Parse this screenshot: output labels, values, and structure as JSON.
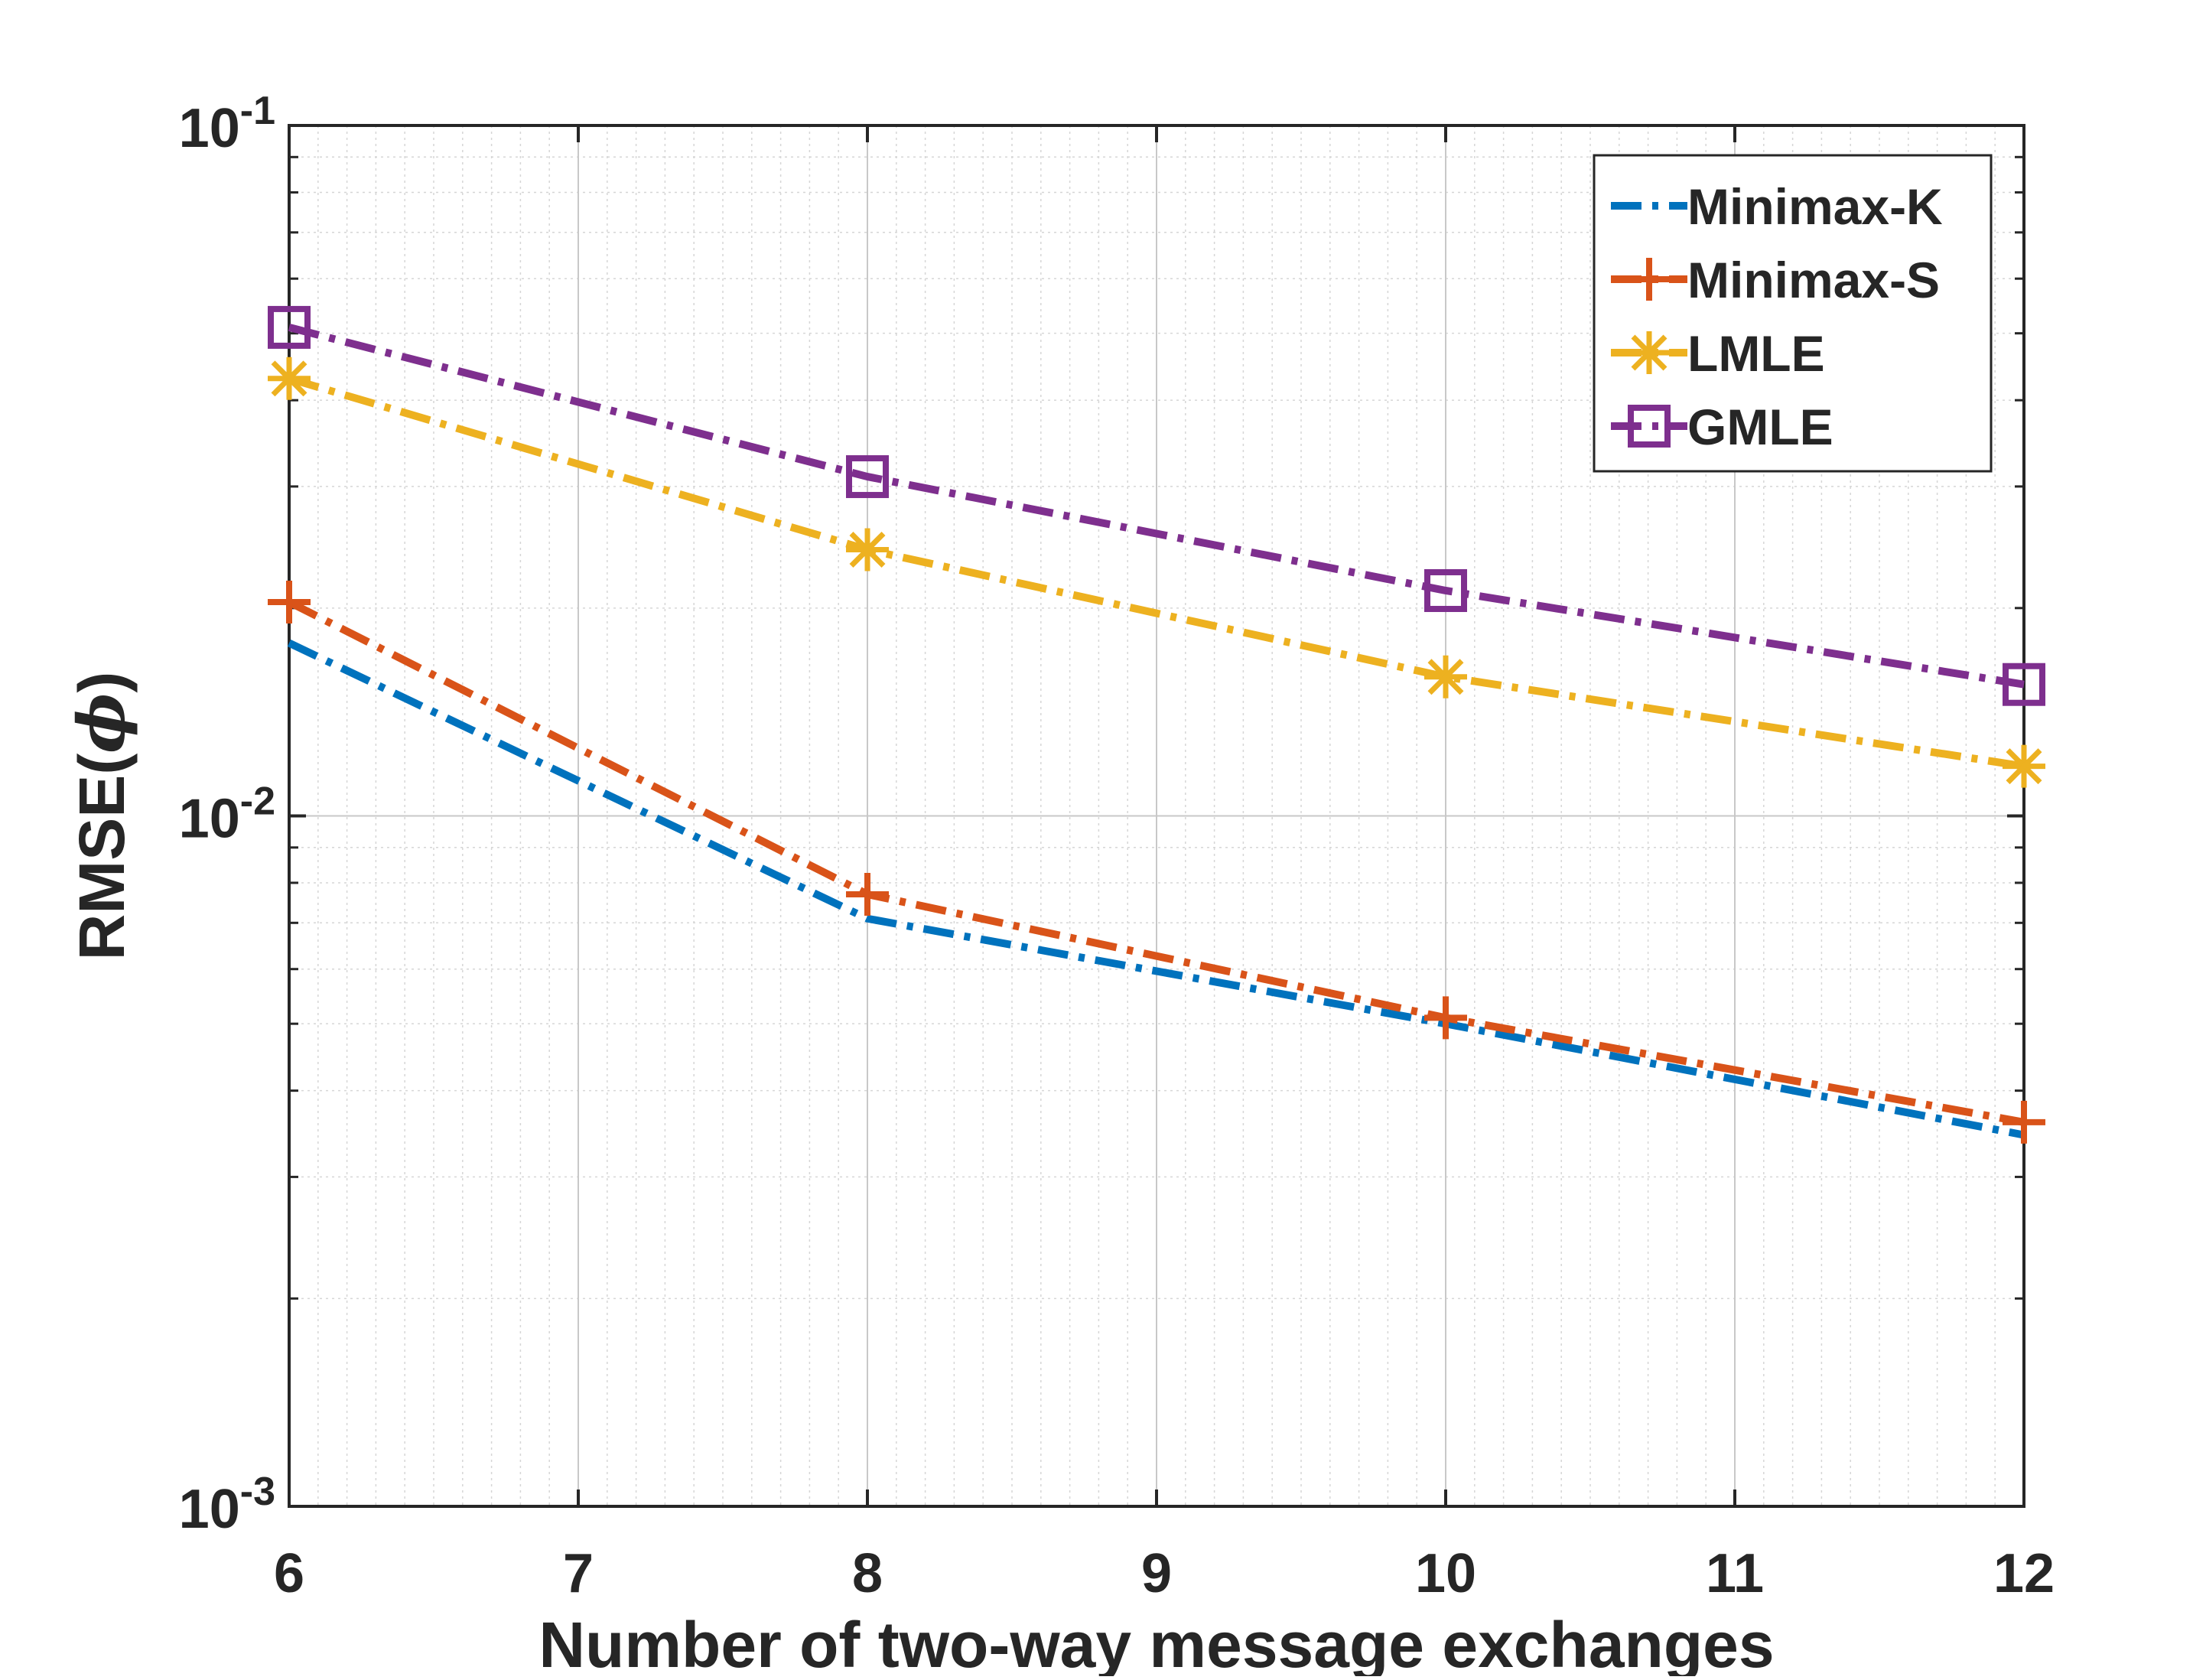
{
  "chart_data": {
    "type": "line",
    "xlabel": "Number of two-way message exchanges",
    "ylabel_text": "RMSE(",
    "ylabel_symbol": "ϕ",
    "ylabel_close": ")",
    "yscale": "log",
    "xlim": [
      6,
      12
    ],
    "ylim": [
      0.001,
      0.1
    ],
    "x_ticks": [
      "6",
      "7",
      "8",
      "9",
      "10",
      "11",
      "12"
    ],
    "y_ticks": [
      {
        "value": 0.1,
        "base": "10",
        "exp": "-1"
      },
      {
        "value": 0.01,
        "base": "10",
        "exp": "-2"
      },
      {
        "value": 0.001,
        "base": "10",
        "exp": "-3"
      }
    ],
    "grid": true,
    "minor_grid": true,
    "legend_position": "top-right",
    "x": [
      6,
      8,
      10,
      12
    ],
    "series": [
      {
        "name": "Minimax-K",
        "color": "#0072BD",
        "marker": "none",
        "values": [
          0.0178,
          0.0071,
          0.005,
          0.00345
        ]
      },
      {
        "name": "Minimax-S",
        "color": "#D95319",
        "marker": "plus",
        "values": [
          0.0204,
          0.0077,
          0.0051,
          0.0036
        ]
      },
      {
        "name": "LMLE",
        "color": "#EDB120",
        "marker": "asterisk",
        "values": [
          0.043,
          0.0243,
          0.0159,
          0.0118
        ]
      },
      {
        "name": "GMLE",
        "color": "#7E2F8E",
        "marker": "square",
        "values": [
          0.051,
          0.031,
          0.0212,
          0.0155
        ]
      }
    ]
  }
}
